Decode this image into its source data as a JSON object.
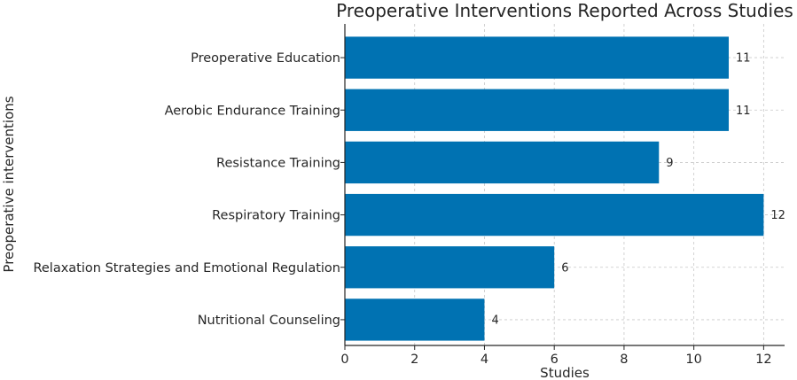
{
  "chart_data": {
    "type": "bar",
    "orientation": "horizontal",
    "title": "Preoperative Interventions Reported Across Studies",
    "xlabel": "Studies",
    "ylabel": "Preoperative interventions",
    "categories": [
      "Preoperative Education",
      "Aerobic Endurance Training",
      "Resistance Training",
      "Respiratory Training",
      "Relaxation Strategies and Emotional Regulation",
      "Nutritional Counseling"
    ],
    "values": [
      11,
      11,
      9,
      12,
      6,
      4
    ],
    "xlim": [
      0,
      12.6
    ],
    "xticks": [
      0,
      2,
      4,
      6,
      8,
      10,
      12
    ],
    "grid": true,
    "bar_color": "#0072B2"
  }
}
